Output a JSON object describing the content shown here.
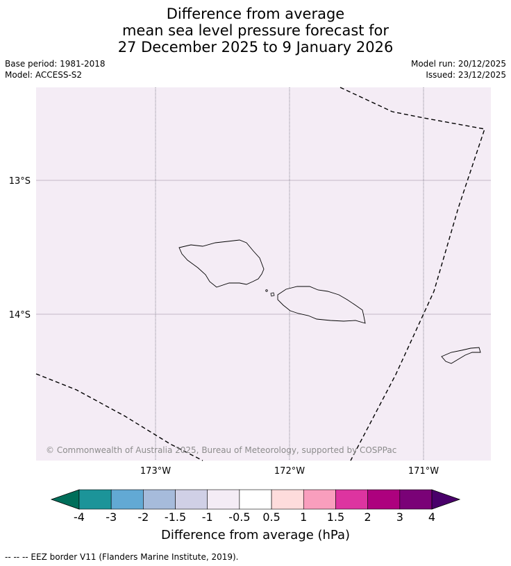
{
  "title": {
    "line1": "Difference from average",
    "line2": "mean sea level pressure forecast for",
    "line3": "27 December 2025 to 9 January 2026"
  },
  "meta": {
    "base_period": "Base period: 1981-2018",
    "model": "Model: ACCESS-S2",
    "model_run": "Model run: 20/12/2025",
    "issued": "Issued: 23/12/2025"
  },
  "map": {
    "background_color": "#f4ecf5",
    "lat_labels": [
      "13°S",
      "14°S"
    ],
    "lon_labels": [
      "173°W",
      "172°W",
      "171°W"
    ],
    "copyright": "© Commonwealth of Australia 2025, Bureau of Meteorology, supported by COSPPac"
  },
  "colorbar": {
    "title": "Difference from average (hPa)",
    "ticks": [
      "-4",
      "-3",
      "-2",
      "-1.5",
      "-1",
      "-0.5",
      "0.5",
      "1",
      "1.5",
      "2",
      "3",
      "4"
    ],
    "colors": [
      "#006e5a",
      "#1c9499",
      "#62a9d4",
      "#a6bbdb",
      "#d0d0e6",
      "#f4ecf5",
      "#ffffff",
      "#fedcdc",
      "#f99ebd",
      "#dd34a0",
      "#ad017e",
      "#7a0277",
      "#49006a"
    ]
  },
  "footer": {
    "legend_text": "--  --  -- EEZ border V11 (Flanders Marine Institute, 2019)."
  }
}
